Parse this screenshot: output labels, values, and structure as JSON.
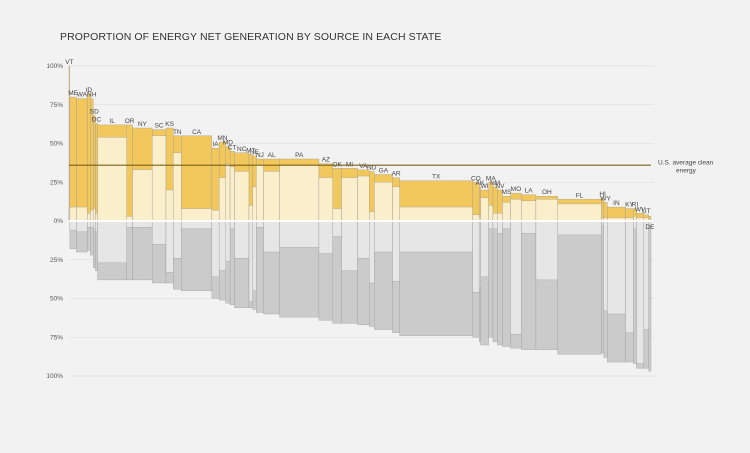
{
  "chart_data": {
    "type": "bar",
    "title": "PROPORTION OF ENERGY NET GENERATION BY SOURCE IN EACH STATE",
    "xlabel": "",
    "ylabel": "",
    "ylim_top": [
      0,
      100
    ],
    "ylim_bottom": [
      0,
      100
    ],
    "tick_labels": [
      "100%",
      "75%",
      "50%",
      "25%",
      "0%",
      "25%",
      "50%",
      "75%",
      "100%"
    ],
    "reference_line": {
      "label": "U.S. average clean energy",
      "value": 36
    },
    "colors": {
      "background": "#f2f2f2",
      "clean_dark": "#f2c75c",
      "clean_light": "#fbeecb",
      "fossil_light": "#e6e6e6",
      "fossil_dark": "#cbcbcb",
      "reference_line": "#7a6214"
    },
    "states": [
      {
        "label": "VT",
        "share": 0.12,
        "clean": 100,
        "clean_light": 8,
        "fossil": 0,
        "fossil_light": 0
      },
      {
        "label": "ME",
        "share": 0.9,
        "clean": 80,
        "clean_light": 9,
        "fossil": 18,
        "fossil_light": 6
      },
      {
        "label": "WA",
        "share": 1.5,
        "clean": 79,
        "clean_light": 9,
        "fossil": 20,
        "fossil_light": 7
      },
      {
        "label": "ID",
        "share": 0.4,
        "clean": 82,
        "clean_light": 5,
        "fossil": 19,
        "fossil_light": 4
      },
      {
        "label": "NH",
        "share": 0.4,
        "clean": 79,
        "clean_light": 7,
        "fossil": 22,
        "fossil_light": 4
      },
      {
        "label": "SD",
        "share": 0.3,
        "clean": 68,
        "clean_light": 8,
        "fossil": 30,
        "fossil_light": 5
      },
      {
        "label": "DC",
        "share": 0.3,
        "clean": 63,
        "clean_light": 5,
        "fossil": 32,
        "fossil_light": 7
      },
      {
        "label": "IL",
        "share": 4.0,
        "clean": 62,
        "clean_light": 54,
        "fossil": 38,
        "fossil_light": 27
      },
      {
        "label": "OR",
        "share": 0.8,
        "clean": 62,
        "clean_light": 3,
        "fossil": 38,
        "fossil_light": 4
      },
      {
        "label": "NY",
        "share": 2.7,
        "clean": 60,
        "clean_light": 33,
        "fossil": 38,
        "fossil_light": 4
      },
      {
        "label": "SC",
        "share": 1.9,
        "clean": 59,
        "clean_light": 55,
        "fossil": 40,
        "fossil_light": 15
      },
      {
        "label": "KS",
        "share": 1.0,
        "clean": 60,
        "clean_light": 20,
        "fossil": 40,
        "fossil_light": 33
      },
      {
        "label": "TN",
        "share": 1.1,
        "clean": 55,
        "clean_light": 44,
        "fossil": 44,
        "fossil_light": 24
      },
      {
        "label": "CA",
        "share": 4.2,
        "clean": 55,
        "clean_light": 8,
        "fossil": 45,
        "fossil_light": 5
      },
      {
        "label": "IA",
        "share": 1.0,
        "clean": 47,
        "clean_light": 7,
        "fossil": 50,
        "fossil_light": 36
      },
      {
        "label": "MN",
        "share": 0.9,
        "clean": 51,
        "clean_light": 28,
        "fossil": 51,
        "fossil_light": 32
      },
      {
        "label": "MD",
        "share": 0.6,
        "clean": 48,
        "clean_light": 37,
        "fossil": 53,
        "fossil_light": 26
      },
      {
        "label": "CT",
        "share": 0.6,
        "clean": 45,
        "clean_light": 35,
        "fossil": 54,
        "fossil_light": 5
      },
      {
        "label": "NC",
        "share": 2.0,
        "clean": 44,
        "clean_light": 32,
        "fossil": 56,
        "fossil_light": 24
      },
      {
        "label": "MT",
        "share": 0.5,
        "clean": 43,
        "clean_light": 10,
        "fossil": 56,
        "fossil_light": 52
      },
      {
        "label": "NE",
        "share": 0.5,
        "clean": 42,
        "clean_light": 22,
        "fossil": 57,
        "fossil_light": 45
      },
      {
        "label": "NJ",
        "share": 1.0,
        "clean": 40,
        "clean_light": 36,
        "fossil": 59,
        "fossil_light": 4
      },
      {
        "label": "AL",
        "share": 2.2,
        "clean": 40,
        "clean_light": 32,
        "fossil": 60,
        "fossil_light": 20
      },
      {
        "label": "PA",
        "share": 5.4,
        "clean": 40,
        "clean_light": 36,
        "fossil": 62,
        "fossil_light": 17
      },
      {
        "label": "AZ",
        "share": 1.9,
        "clean": 37,
        "clean_light": 28,
        "fossil": 64,
        "fossil_light": 21
      },
      {
        "label": "OK",
        "share": 1.2,
        "clean": 34,
        "clean_light": 8,
        "fossil": 66,
        "fossil_light": 10
      },
      {
        "label": "MI",
        "share": 2.2,
        "clean": 34,
        "clean_light": 28,
        "fossil": 66,
        "fossil_light": 32
      },
      {
        "label": "VA",
        "share": 1.6,
        "clean": 33,
        "clean_light": 29,
        "fossil": 67,
        "fossil_light": 24
      },
      {
        "label": "ND",
        "share": 0.7,
        "clean": 32,
        "clean_light": 6,
        "fossil": 68,
        "fossil_light": 40
      },
      {
        "label": "GA",
        "share": 2.5,
        "clean": 30,
        "clean_light": 25,
        "fossil": 70,
        "fossil_light": 20
      },
      {
        "label": "AR",
        "share": 1.0,
        "clean": 28,
        "clean_light": 22,
        "fossil": 72,
        "fossil_light": 39
      },
      {
        "label": "TX",
        "share": 10.0,
        "clean": 26,
        "clean_light": 9,
        "fossil": 74,
        "fossil_light": 20
      },
      {
        "label": "CO",
        "share": 0.9,
        "clean": 25,
        "clean_light": 4,
        "fossil": 75,
        "fossil_light": 46
      },
      {
        "label": "AK",
        "share": 0.2,
        "clean": 22,
        "clean_light": 3,
        "fossil": 78,
        "fossil_light": 43
      },
      {
        "label": "WI",
        "share": 1.1,
        "clean": 20,
        "clean_light": 15,
        "fossil": 80,
        "fossil_light": 36
      },
      {
        "label": "MA",
        "share": 0.6,
        "clean": 25,
        "clean_light": 10,
        "fossil": 75,
        "fossil_light": 5
      },
      {
        "label": "NM",
        "share": 0.6,
        "clean": 22,
        "clean_light": 5,
        "fossil": 78,
        "fossil_light": 5
      },
      {
        "label": "NV",
        "share": 0.7,
        "clean": 20,
        "clean_light": 5,
        "fossil": 80,
        "fossil_light": 8
      },
      {
        "label": "MS",
        "share": 1.1,
        "clean": 16,
        "clean_light": 12,
        "fossil": 81,
        "fossil_light": 5
      },
      {
        "label": "MO",
        "share": 1.5,
        "clean": 18,
        "clean_light": 14,
        "fossil": 82,
        "fossil_light": 73
      },
      {
        "label": "LA",
        "share": 2.0,
        "clean": 17,
        "clean_light": 13,
        "fossil": 83,
        "fossil_light": 8
      },
      {
        "label": "OH",
        "share": 3.0,
        "clean": 16,
        "clean_light": 14,
        "fossil": 83,
        "fossil_light": 38
      },
      {
        "label": "FL",
        "share": 6.0,
        "clean": 14,
        "clean_light": 11,
        "fossil": 86,
        "fossil_light": 9
      },
      {
        "label": "HI",
        "share": 0.3,
        "clean": 15,
        "clean_light": 2,
        "fossil": 85,
        "fossil_light": 3
      },
      {
        "label": "WY",
        "share": 0.5,
        "clean": 12,
        "clean_light": 2,
        "fossil": 88,
        "fossil_light": 58
      },
      {
        "label": "IN",
        "share": 2.5,
        "clean": 9,
        "clean_light": 2,
        "fossil": 91,
        "fossil_light": 60
      },
      {
        "label": "KY",
        "share": 1.1,
        "clean": 8,
        "clean_light": 2,
        "fossil": 91,
        "fossil_light": 72
      },
      {
        "label": "RI",
        "share": 0.4,
        "clean": 8,
        "clean_light": 3,
        "fossil": 92,
        "fossil_light": 5
      },
      {
        "label": "WV",
        "share": 1.0,
        "clean": 5,
        "clean_light": 2,
        "fossil": 95,
        "fossil_light": 92
      },
      {
        "label": "UT",
        "share": 0.7,
        "clean": 4,
        "clean_light": 2,
        "fossil": 95,
        "fossil_light": 70
      },
      {
        "label": "DE",
        "share": 0.3,
        "clean": 3,
        "clean_light": 1,
        "fossil": 97,
        "fossil_light": 3
      }
    ]
  }
}
